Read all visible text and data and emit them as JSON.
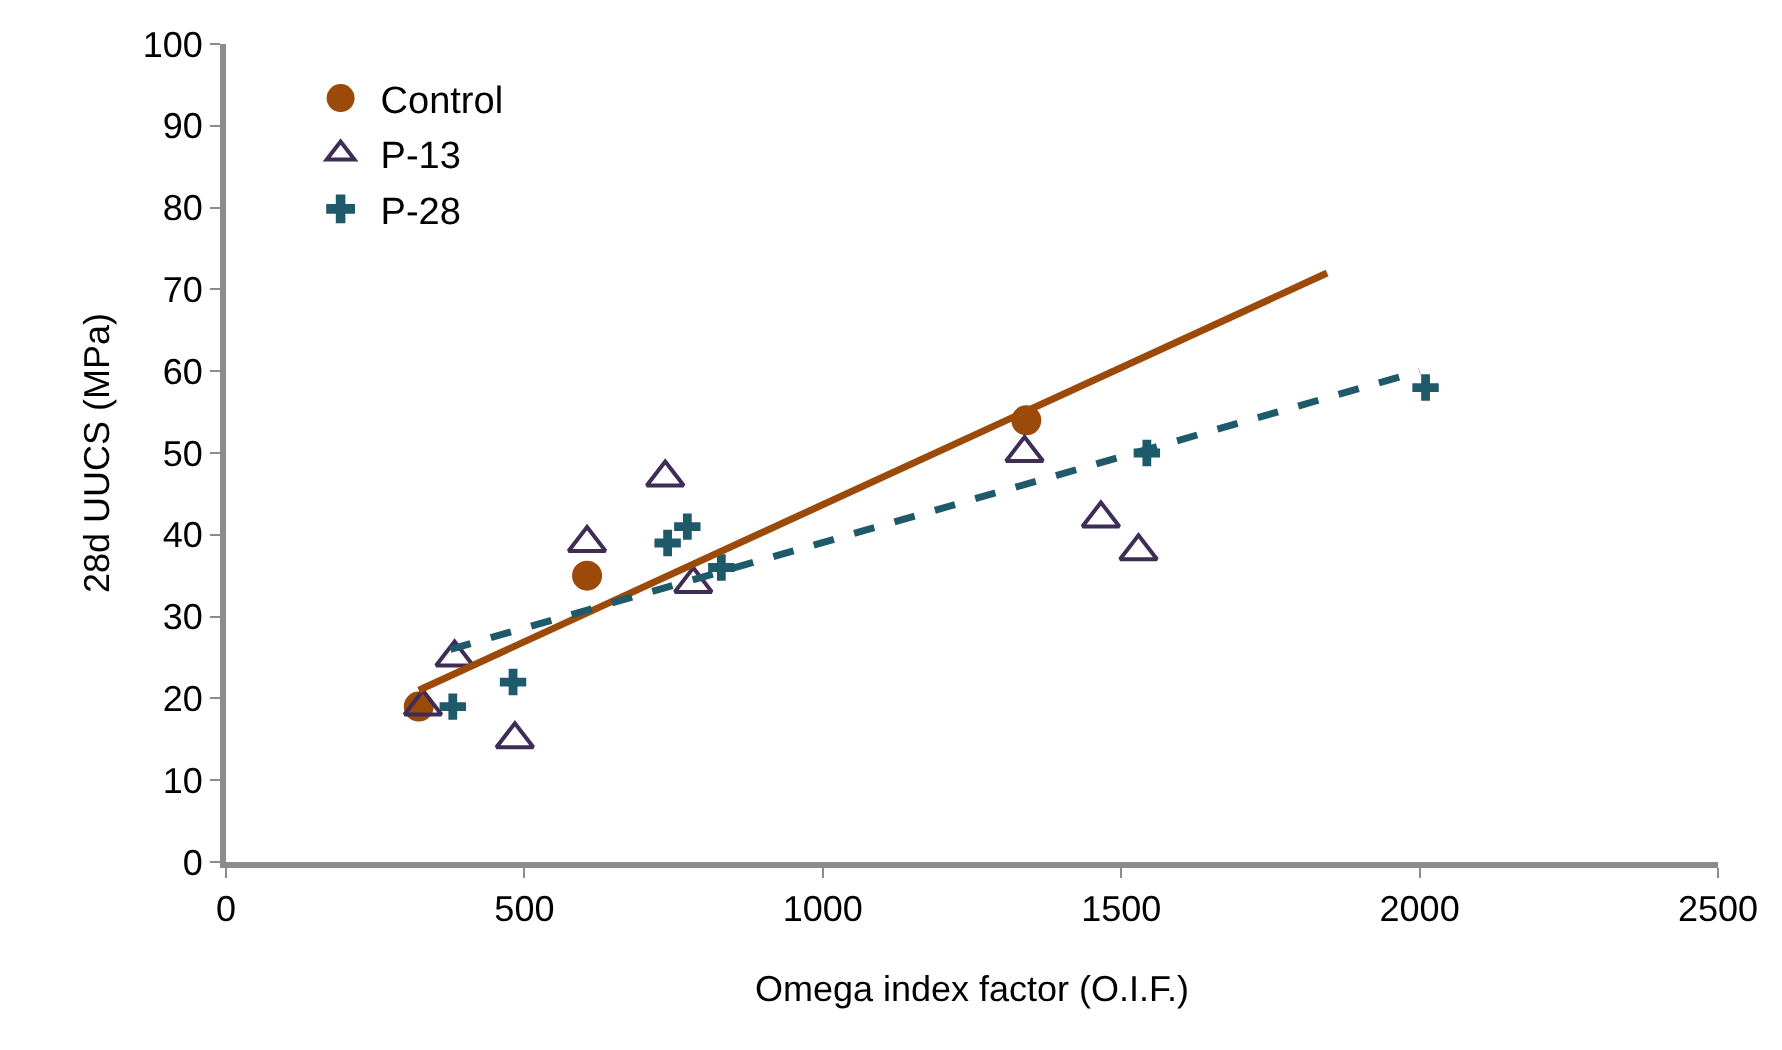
{
  "chart_data": {
    "type": "scatter",
    "xlabel": "Omega index factor (O.I.F.)",
    "ylabel": "28d UUCS (MPa)",
    "xlim": [
      0,
      2500
    ],
    "xticks": [
      0,
      500,
      1000,
      1500,
      2000,
      2500
    ],
    "ylim": [
      0,
      100
    ],
    "yticks": [
      0,
      10,
      20,
      30,
      40,
      50,
      60,
      70,
      80,
      90,
      100
    ],
    "grid": false,
    "legend": "top left",
    "series": [
      {
        "name": "Control",
        "marker": "circle",
        "color": "#9c4a0a",
        "x": [
          323,
          605,
          1341
        ],
        "values": [
          19,
          35,
          54
        ]
      },
      {
        "name": "P-13",
        "marker": "triangle",
        "color": "#3f2d56",
        "x": [
          383,
          330,
          484,
          605,
          736,
          783,
          1338,
          1466,
          1529
        ],
        "values": [
          25,
          19,
          15,
          39,
          47,
          34,
          50,
          42,
          38
        ]
      },
      {
        "name": "P-28",
        "marker": "cross",
        "color": "#1f5a6b",
        "x": [
          380,
          481,
          740,
          773,
          830,
          1543,
          2010
        ],
        "values": [
          19,
          22,
          39,
          41,
          36,
          50,
          58
        ]
      },
      {
        "type": "line",
        "line_style": "solid",
        "color": "#9c4a0a",
        "x": [
          323,
          1845
        ],
        "values": [
          21,
          72
        ]
      },
      {
        "type": "line",
        "line_style": "dashed",
        "color": "#1f5a6b",
        "x": [
          376,
          2000
        ],
        "values": [
          26,
          60
        ]
      }
    ]
  }
}
